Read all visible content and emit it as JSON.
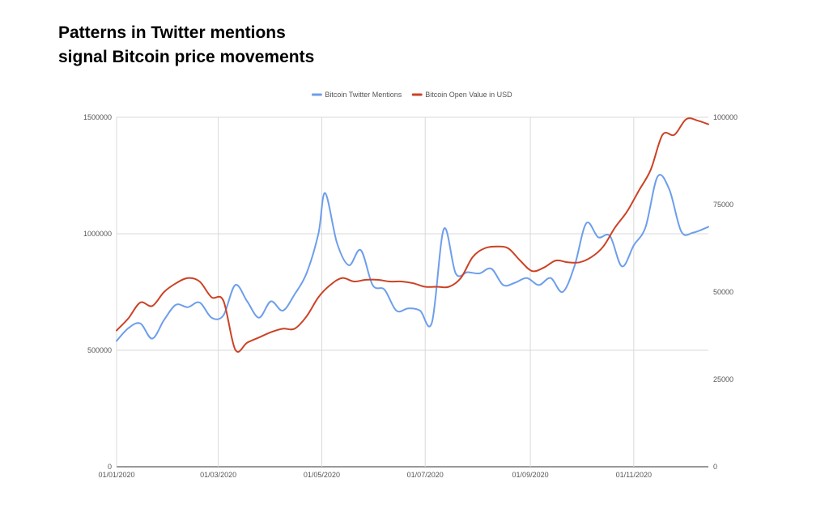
{
  "chart_data": {
    "type": "line",
    "title_lines": [
      "Patterns in Twitter mentions",
      "signal Bitcoin price movements"
    ],
    "x_range": [
      "2020-01-01",
      "2020-12-15"
    ],
    "x_ticks": [
      {
        "date": "2020-01-01",
        "label": "01/01/2020"
      },
      {
        "date": "2020-03-01",
        "label": "01/03/2020"
      },
      {
        "date": "2020-05-01",
        "label": "01/05/2020"
      },
      {
        "date": "2020-07-01",
        "label": "01/07/2020"
      },
      {
        "date": "2020-09-01",
        "label": "01/09/2020"
      },
      {
        "date": "2020-11-01",
        "label": "01/11/2020"
      }
    ],
    "y_left": {
      "min": 0,
      "max": 1500000,
      "ticks": [
        "0",
        "500000",
        "1000000",
        "1500000"
      ]
    },
    "y_right": {
      "min": 0,
      "max": 100000,
      "ticks": [
        "0",
        "25000",
        "50000",
        "75000",
        "100000"
      ]
    },
    "grid": true,
    "legend_position": "top",
    "series": [
      {
        "name": "Bitcoin Twitter Mentions",
        "axis": "left",
        "color": "#6d9eeb",
        "points": [
          [
            "2020-01-01",
            540000
          ],
          [
            "2020-01-08",
            595000
          ],
          [
            "2020-01-15",
            615000
          ],
          [
            "2020-01-22",
            550000
          ],
          [
            "2020-01-29",
            630000
          ],
          [
            "2020-02-05",
            695000
          ],
          [
            "2020-02-12",
            685000
          ],
          [
            "2020-02-19",
            705000
          ],
          [
            "2020-02-26",
            640000
          ],
          [
            "2020-03-04",
            650000
          ],
          [
            "2020-03-11",
            780000
          ],
          [
            "2020-03-18",
            710000
          ],
          [
            "2020-03-25",
            640000
          ],
          [
            "2020-04-01",
            710000
          ],
          [
            "2020-04-08",
            670000
          ],
          [
            "2020-04-15",
            740000
          ],
          [
            "2020-04-22",
            830000
          ],
          [
            "2020-04-29",
            1000000
          ],
          [
            "2020-05-03",
            1175000
          ],
          [
            "2020-05-10",
            960000
          ],
          [
            "2020-05-17",
            865000
          ],
          [
            "2020-05-24",
            930000
          ],
          [
            "2020-05-31",
            780000
          ],
          [
            "2020-06-07",
            760000
          ],
          [
            "2020-06-14",
            670000
          ],
          [
            "2020-06-21",
            680000
          ],
          [
            "2020-06-28",
            670000
          ],
          [
            "2020-07-05",
            620000
          ],
          [
            "2020-07-12",
            1020000
          ],
          [
            "2020-07-19",
            830000
          ],
          [
            "2020-07-26",
            835000
          ],
          [
            "2020-08-02",
            830000
          ],
          [
            "2020-08-09",
            850000
          ],
          [
            "2020-08-16",
            780000
          ],
          [
            "2020-08-23",
            790000
          ],
          [
            "2020-08-30",
            810000
          ],
          [
            "2020-09-06",
            780000
          ],
          [
            "2020-09-13",
            810000
          ],
          [
            "2020-09-20",
            750000
          ],
          [
            "2020-09-27",
            860000
          ],
          [
            "2020-10-04",
            1045000
          ],
          [
            "2020-10-11",
            985000
          ],
          [
            "2020-10-18",
            990000
          ],
          [
            "2020-10-25",
            860000
          ],
          [
            "2020-11-01",
            950000
          ],
          [
            "2020-11-08",
            1030000
          ],
          [
            "2020-11-15",
            1245000
          ],
          [
            "2020-11-22",
            1190000
          ],
          [
            "2020-11-29",
            1010000
          ],
          [
            "2020-12-06",
            1005000
          ],
          [
            "2020-12-15",
            1030000
          ]
        ]
      },
      {
        "name": "Bitcoin Open Value in USD",
        "axis": "right",
        "color": "#cc4125",
        "points": [
          [
            "2020-01-01",
            39000
          ],
          [
            "2020-01-08",
            42500
          ],
          [
            "2020-01-15",
            47000
          ],
          [
            "2020-01-22",
            46000
          ],
          [
            "2020-01-29",
            50000
          ],
          [
            "2020-02-05",
            52500
          ],
          [
            "2020-02-12",
            54000
          ],
          [
            "2020-02-19",
            53000
          ],
          [
            "2020-02-26",
            48500
          ],
          [
            "2020-03-04",
            47500
          ],
          [
            "2020-03-11",
            33500
          ],
          [
            "2020-03-18",
            35500
          ],
          [
            "2020-03-25",
            37000
          ],
          [
            "2020-04-01",
            38500
          ],
          [
            "2020-04-08",
            39500
          ],
          [
            "2020-04-15",
            39500
          ],
          [
            "2020-04-22",
            43000
          ],
          [
            "2020-04-29",
            48500
          ],
          [
            "2020-05-06",
            52000
          ],
          [
            "2020-05-13",
            54000
          ],
          [
            "2020-05-20",
            53000
          ],
          [
            "2020-05-27",
            53500
          ],
          [
            "2020-06-03",
            53500
          ],
          [
            "2020-06-10",
            53000
          ],
          [
            "2020-06-17",
            53000
          ],
          [
            "2020-06-24",
            52500
          ],
          [
            "2020-07-01",
            51500
          ],
          [
            "2020-07-08",
            51500
          ],
          [
            "2020-07-15",
            51500
          ],
          [
            "2020-07-22",
            54000
          ],
          [
            "2020-07-29",
            60000
          ],
          [
            "2020-08-05",
            62500
          ],
          [
            "2020-08-12",
            63000
          ],
          [
            "2020-08-19",
            62500
          ],
          [
            "2020-08-26",
            59000
          ],
          [
            "2020-09-02",
            56000
          ],
          [
            "2020-09-09",
            57000
          ],
          [
            "2020-09-16",
            59000
          ],
          [
            "2020-09-23",
            58500
          ],
          [
            "2020-09-30",
            58500
          ],
          [
            "2020-10-07",
            60000
          ],
          [
            "2020-10-14",
            63000
          ],
          [
            "2020-10-21",
            68500
          ],
          [
            "2020-10-28",
            73000
          ],
          [
            "2020-11-04",
            79000
          ],
          [
            "2020-11-11",
            85000
          ],
          [
            "2020-11-18",
            95000
          ],
          [
            "2020-11-25",
            95000
          ],
          [
            "2020-12-02",
            99500
          ],
          [
            "2020-12-09",
            99000
          ],
          [
            "2020-12-15",
            98000
          ]
        ]
      }
    ]
  }
}
